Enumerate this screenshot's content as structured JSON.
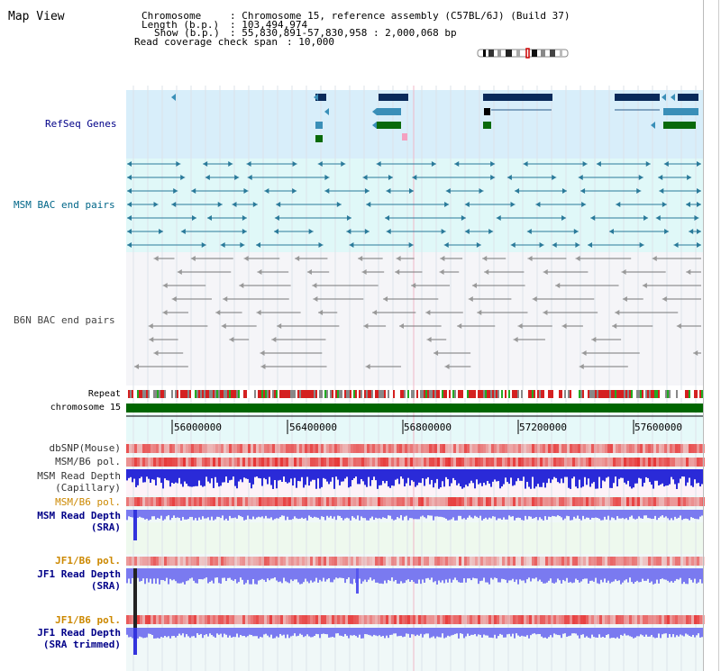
{
  "header": {
    "title": "Map View",
    "chromosome_label": "Chromosome",
    "chromosome_value": ": Chromosome 15, reference assembly (C57BL/6J) (Build 37)",
    "length_label": "Length (b.p.)",
    "length_value": ": 103,494,974",
    "show_label": "Show (b.p.)",
    "show_value": ": 55,830,891-57,830,958 : 2,000,068 bp",
    "coverage_label": "Read coverage check span",
    "coverage_value": ": 10,000"
  },
  "tracks": {
    "refseq": "RefSeq Genes",
    "msm_bac": "MSM BAC end pairs",
    "b6n_bac": "B6N BAC end pairs",
    "repeat": "Repeat",
    "chromosome": "chromosome 15",
    "dbsnp": "dbSNP(Mouse)",
    "msm_pol": "MSM/B6 pol.",
    "msm_depth_cap_1": "MSM Read Depth",
    "msm_depth_cap_2": "(Capillary)",
    "msm_pol2": "MSM/B6 pol.",
    "msm_depth_sra_1": "MSM Read Depth",
    "msm_depth_sra_2": "(SRA)",
    "jf1_pol": "JF1/B6 pol.",
    "jf1_depth_1": "JF1 Read Depth",
    "jf1_depth_2": "(SRA)",
    "jf1_pol2": "JF1/B6 pol.",
    "jf1_depth_trim_1": "JF1 Read Depth",
    "jf1_depth_trim_2": "(SRA trimmed)"
  },
  "axis": {
    "ticks": [
      "56000000",
      "56400000",
      "56800000",
      "57200000",
      "57600000"
    ]
  },
  "colors": {
    "refseq_bg": "#d8eefa",
    "bac_bg": "#e0f8f8",
    "b6n_bg": "#f4f4f8",
    "gene_navy": "#0a2a5a",
    "gene_teal": "#3a8fb8",
    "gene_green": "#0a6a0a",
    "bac_teal": "#2a7a9a",
    "bac_gray": "#777777",
    "chrom_green": "#006600",
    "label_blue": "#000088",
    "label_orange": "#cc8800",
    "label_teal": "#006688",
    "depth_blue": "#3333cc"
  }
}
